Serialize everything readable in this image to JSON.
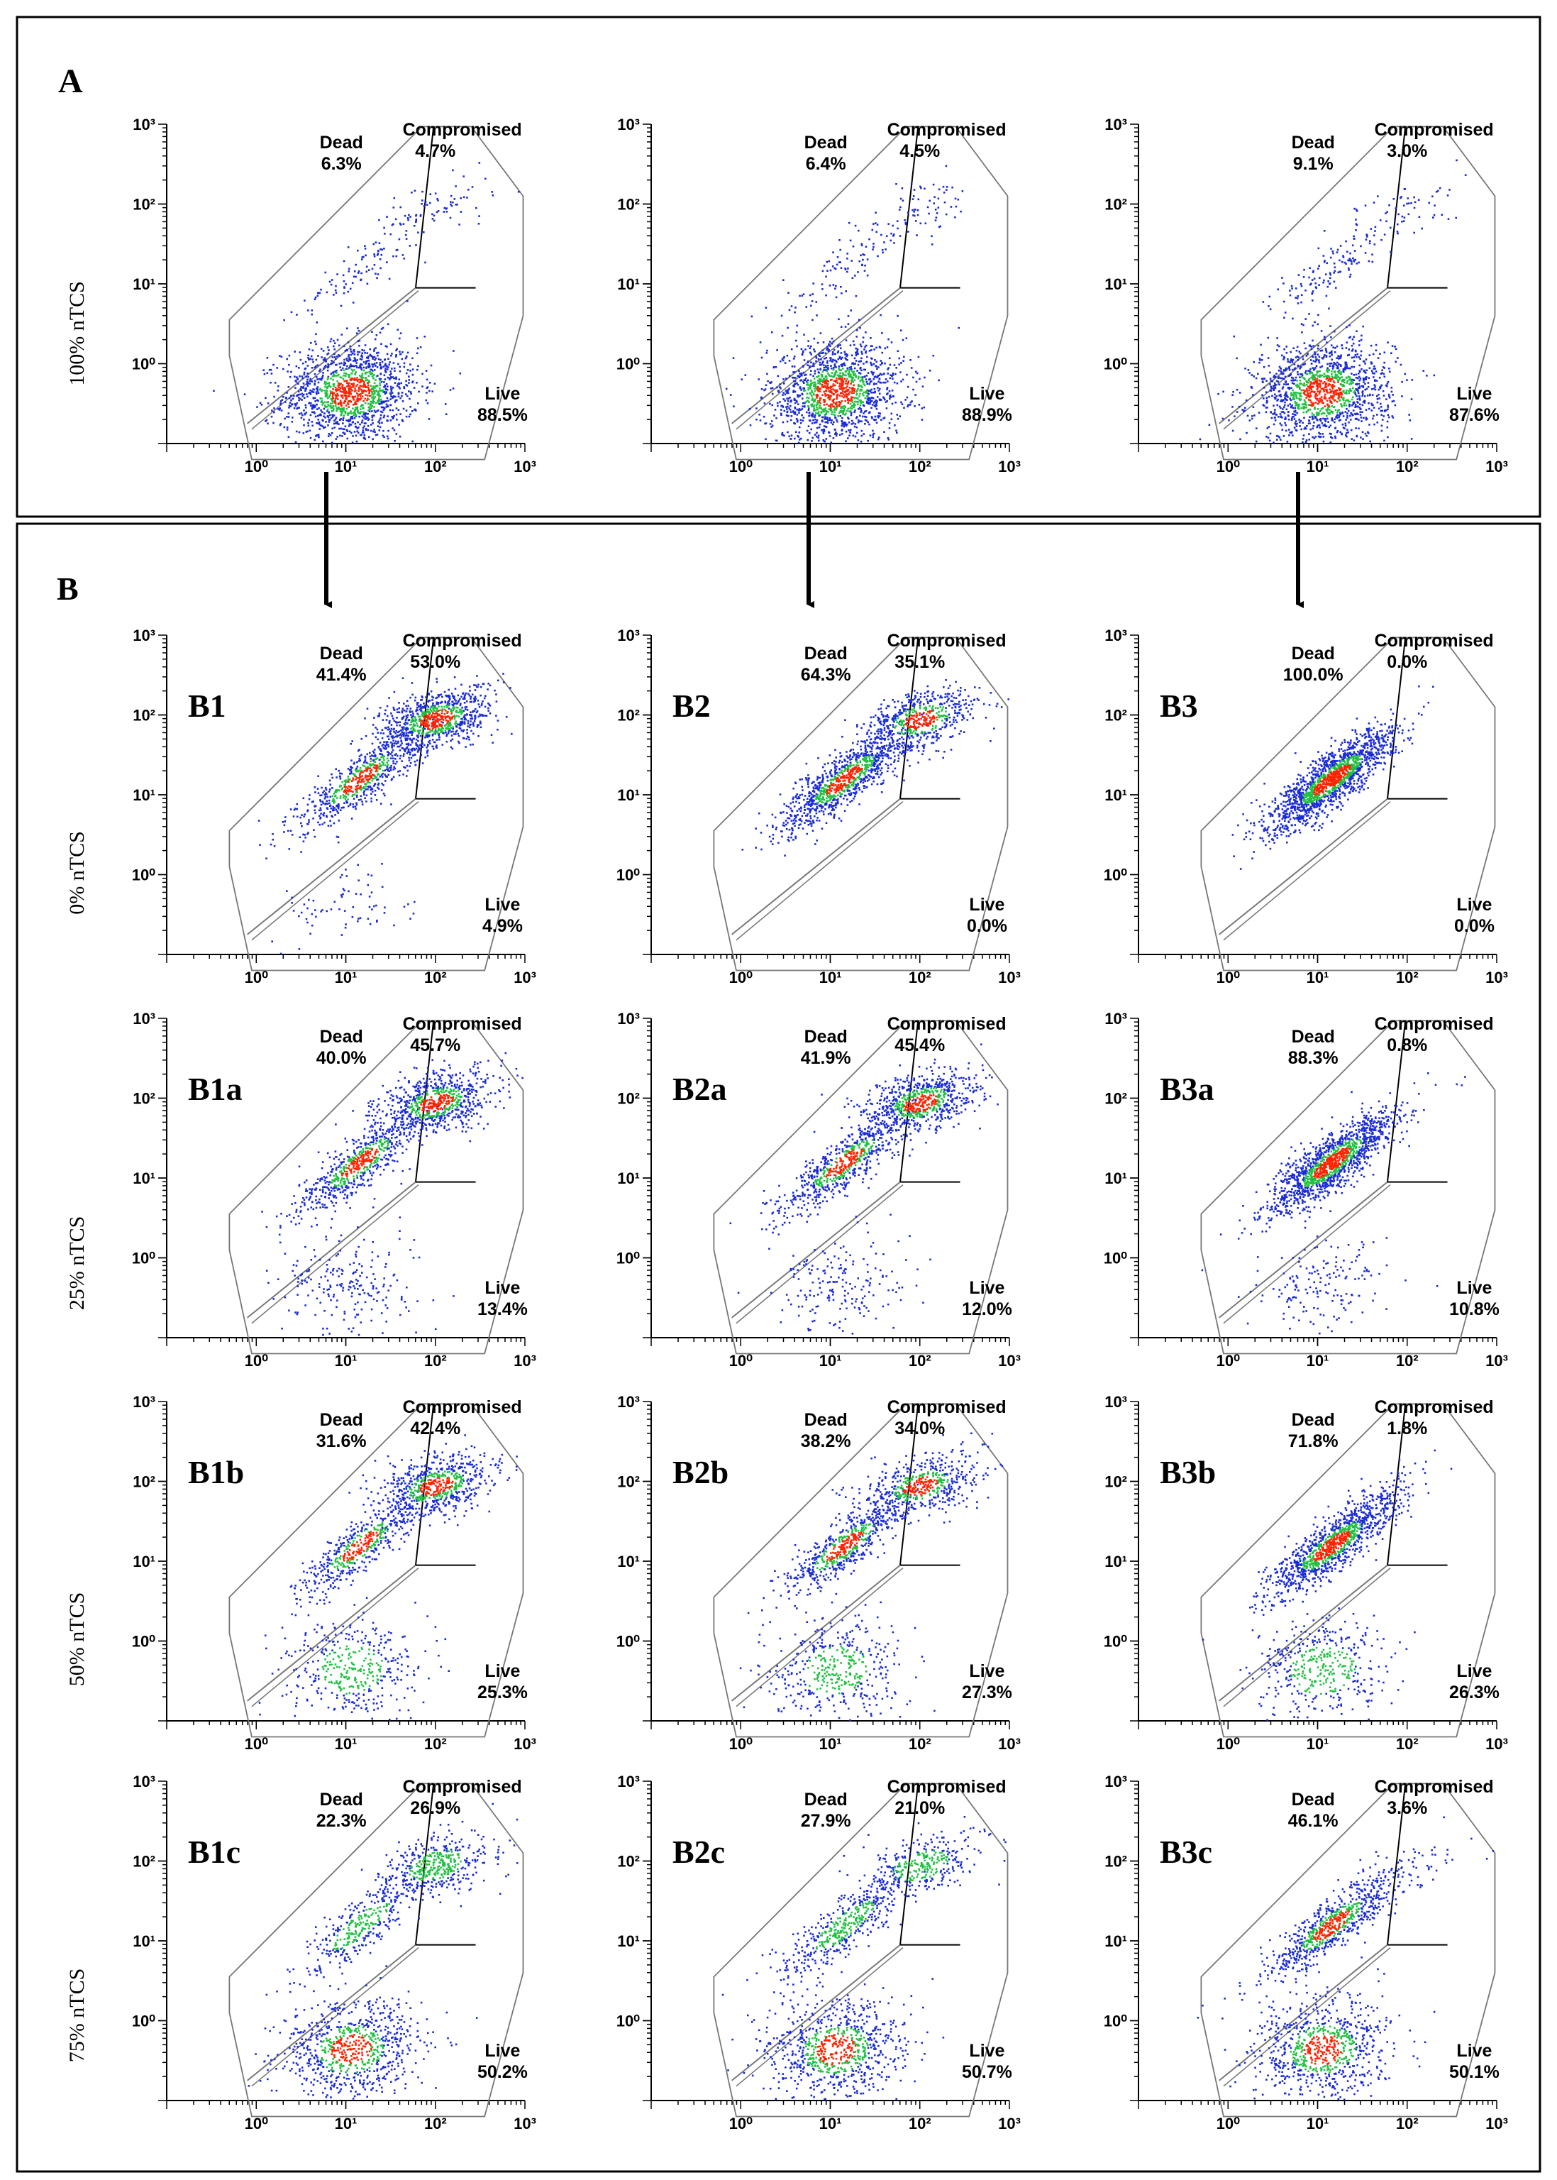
{
  "figure": {
    "section_a_label": "A",
    "section_b_label": "B",
    "gate_labels": {
      "dead": "Dead",
      "compromised": "Compromised",
      "live": "Live"
    },
    "row_labels": [
      "100% nTCS",
      "0% nTCS",
      "25% nTCS",
      "50% nTCS",
      "75% nTCS"
    ],
    "colors": {
      "low_density": "#1a2bd6",
      "mid_density": "#20c040",
      "high_density": "#ff2200",
      "gate_line": "#777777"
    }
  },
  "chart_data": [
    {
      "type": "scatter",
      "panel_label": "",
      "row": "100% nTCS",
      "xlim": [
        0.1,
        1000
      ],
      "ylim": [
        0.1,
        1000
      ],
      "x_scale": "log",
      "y_scale": "log",
      "x_ticks": [
        "10⁰",
        "10¹",
        "10²",
        "10³"
      ],
      "y_ticks": [
        "10⁰",
        "10¹",
        "10²",
        "10³"
      ],
      "gates": {
        "dead": "6.3%",
        "compromised": "4.7%",
        "live": "88.5%"
      }
    },
    {
      "type": "scatter",
      "panel_label": "",
      "row": "100% nTCS",
      "xlim": [
        0.1,
        1000
      ],
      "ylim": [
        0.1,
        1000
      ],
      "x_scale": "log",
      "y_scale": "log",
      "x_ticks": [
        "10⁰",
        "10¹",
        "10²",
        "10³"
      ],
      "y_ticks": [
        "10⁰",
        "10¹",
        "10²",
        "10³"
      ],
      "gates": {
        "dead": "6.4%",
        "compromised": "4.5%",
        "live": "88.9%"
      }
    },
    {
      "type": "scatter",
      "panel_label": "",
      "row": "100% nTCS",
      "xlim": [
        0.1,
        1000
      ],
      "ylim": [
        0.1,
        1000
      ],
      "x_scale": "log",
      "y_scale": "log",
      "x_ticks": [
        "10⁰",
        "10¹",
        "10²",
        "10³"
      ],
      "y_ticks": [
        "10⁰",
        "10¹",
        "10²",
        "10³"
      ],
      "gates": {
        "dead": "9.1%",
        "compromised": "3.0%",
        "live": "87.6%"
      }
    },
    {
      "type": "scatter",
      "panel_label": "B1",
      "row": "0% nTCS",
      "xlim": [
        0.1,
        1000
      ],
      "ylim": [
        0.1,
        1000
      ],
      "x_scale": "log",
      "y_scale": "log",
      "x_ticks": [
        "10⁰",
        "10¹",
        "10²",
        "10³"
      ],
      "y_ticks": [
        "10⁰",
        "10¹",
        "10²",
        "10³"
      ],
      "gates": {
        "dead": "41.4%",
        "compromised": "53.0%",
        "live": "4.9%"
      }
    },
    {
      "type": "scatter",
      "panel_label": "B2",
      "row": "0% nTCS",
      "xlim": [
        0.1,
        1000
      ],
      "ylim": [
        0.1,
        1000
      ],
      "x_scale": "log",
      "y_scale": "log",
      "x_ticks": [
        "10⁰",
        "10¹",
        "10²",
        "10³"
      ],
      "y_ticks": [
        "10⁰",
        "10¹",
        "10²",
        "10³"
      ],
      "gates": {
        "dead": "64.3%",
        "compromised": "35.1%",
        "live": "0.0%"
      }
    },
    {
      "type": "scatter",
      "panel_label": "B3",
      "row": "0% nTCS",
      "xlim": [
        0.1,
        1000
      ],
      "ylim": [
        0.1,
        1000
      ],
      "x_scale": "log",
      "y_scale": "log",
      "x_ticks": [
        "10⁰",
        "10¹",
        "10²",
        "10³"
      ],
      "y_ticks": [
        "10⁰",
        "10¹",
        "10²",
        "10³"
      ],
      "gates": {
        "dead": "100.0%",
        "compromised": "0.0%",
        "live": "0.0%"
      }
    },
    {
      "type": "scatter",
      "panel_label": "B1a",
      "row": "25% nTCS",
      "xlim": [
        0.1,
        1000
      ],
      "ylim": [
        0.1,
        1000
      ],
      "x_scale": "log",
      "y_scale": "log",
      "x_ticks": [
        "10⁰",
        "10¹",
        "10²",
        "10³"
      ],
      "y_ticks": [
        "10⁰",
        "10¹",
        "10²",
        "10³"
      ],
      "gates": {
        "dead": "40.0%",
        "compromised": "45.7%",
        "live": "13.4%"
      }
    },
    {
      "type": "scatter",
      "panel_label": "B2a",
      "row": "25% nTCS",
      "xlim": [
        0.1,
        1000
      ],
      "ylim": [
        0.1,
        1000
      ],
      "x_scale": "log",
      "y_scale": "log",
      "x_ticks": [
        "10⁰",
        "10¹",
        "10²",
        "10³"
      ],
      "y_ticks": [
        "10⁰",
        "10¹",
        "10²",
        "10³"
      ],
      "gates": {
        "dead": "41.9%",
        "compromised": "45.4%",
        "live": "12.0%"
      }
    },
    {
      "type": "scatter",
      "panel_label": "B3a",
      "row": "25% nTCS",
      "xlim": [
        0.1,
        1000
      ],
      "ylim": [
        0.1,
        1000
      ],
      "x_scale": "log",
      "y_scale": "log",
      "x_ticks": [
        "10⁰",
        "10¹",
        "10²",
        "10³"
      ],
      "y_ticks": [
        "10⁰",
        "10¹",
        "10²",
        "10³"
      ],
      "gates": {
        "dead": "88.3%",
        "compromised": "0.8%",
        "live": "10.8%"
      }
    },
    {
      "type": "scatter",
      "panel_label": "B1b",
      "row": "50% nTCS",
      "xlim": [
        0.1,
        1000
      ],
      "ylim": [
        0.1,
        1000
      ],
      "x_scale": "log",
      "y_scale": "log",
      "x_ticks": [
        "10⁰",
        "10¹",
        "10²",
        "10³"
      ],
      "y_ticks": [
        "10⁰",
        "10¹",
        "10²",
        "10³"
      ],
      "gates": {
        "dead": "31.6%",
        "compromised": "42.4%",
        "live": "25.3%"
      }
    },
    {
      "type": "scatter",
      "panel_label": "B2b",
      "row": "50% nTCS",
      "xlim": [
        0.1,
        1000
      ],
      "ylim": [
        0.1,
        1000
      ],
      "x_scale": "log",
      "y_scale": "log",
      "x_ticks": [
        "10⁰",
        "10¹",
        "10²",
        "10³"
      ],
      "y_ticks": [
        "10⁰",
        "10¹",
        "10²",
        "10³"
      ],
      "gates": {
        "dead": "38.2%",
        "compromised": "34.0%",
        "live": "27.3%"
      }
    },
    {
      "type": "scatter",
      "panel_label": "B3b",
      "row": "50% nTCS",
      "xlim": [
        0.1,
        1000
      ],
      "ylim": [
        0.1,
        1000
      ],
      "x_scale": "log",
      "y_scale": "log",
      "x_ticks": [
        "10⁰",
        "10¹",
        "10²",
        "10³"
      ],
      "y_ticks": [
        "10⁰",
        "10¹",
        "10²",
        "10³"
      ],
      "gates": {
        "dead": "71.8%",
        "compromised": "1.8%",
        "live": "26.3%"
      }
    },
    {
      "type": "scatter",
      "panel_label": "B1c",
      "row": "75% nTCS",
      "xlim": [
        0.1,
        1000
      ],
      "ylim": [
        0.1,
        1000
      ],
      "x_scale": "log",
      "y_scale": "log",
      "x_ticks": [
        "10⁰",
        "10¹",
        "10²",
        "10³"
      ],
      "y_ticks": [
        "10⁰",
        "10¹",
        "10²",
        "10³"
      ],
      "gates": {
        "dead": "22.3%",
        "compromised": "26.9%",
        "live": "50.2%"
      }
    },
    {
      "type": "scatter",
      "panel_label": "B2c",
      "row": "75% nTCS",
      "xlim": [
        0.1,
        1000
      ],
      "ylim": [
        0.1,
        1000
      ],
      "x_scale": "log",
      "y_scale": "log",
      "x_ticks": [
        "10⁰",
        "10¹",
        "10²",
        "10³"
      ],
      "y_ticks": [
        "10⁰",
        "10¹",
        "10²",
        "10³"
      ],
      "gates": {
        "dead": "27.9%",
        "compromised": "21.0%",
        "live": "50.7%"
      }
    },
    {
      "type": "scatter",
      "panel_label": "B3c",
      "row": "75% nTCS",
      "xlim": [
        0.1,
        1000
      ],
      "ylim": [
        0.1,
        1000
      ],
      "x_scale": "log",
      "y_scale": "log",
      "x_ticks": [
        "10⁰",
        "10¹",
        "10²",
        "10³"
      ],
      "y_ticks": [
        "10⁰",
        "10¹",
        "10²",
        "10³"
      ],
      "gates": {
        "dead": "46.1%",
        "compromised": "3.6%",
        "live": "50.1%"
      }
    }
  ]
}
